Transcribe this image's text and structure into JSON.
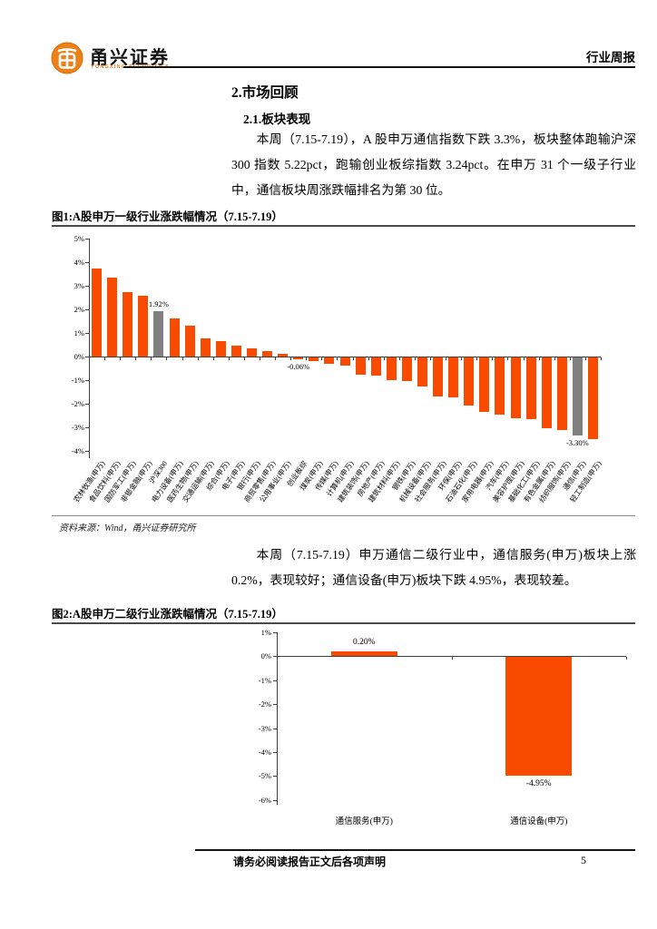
{
  "header": {
    "brand_cn": "甬兴证券",
    "brand_en": "YONGXING SECURITIES",
    "report_type": "行业周报"
  },
  "content": {
    "section_title": "2.市场回顾",
    "subsection_title": "2.1.板块表现",
    "paragraph1": "本周（7.15-7.19），A 股申万通信指数下跌 3.3%，板块整体跑输沪深 300 指数 5.22pct，跑输创业板综指数 3.24pct。在申万 31 个一级子行业中，通信板块周涨跌幅排名为第 30 位。",
    "paragraph2": "本周（7.15-7.19）申万通信二级行业中，通信服务(申万)板块上涨 0.2%，表现较好；通信设备(申万)板块下跌 4.95%，表现较差。"
  },
  "footer": {
    "disclaimer": "请务必阅读报告正文后各项声明",
    "page_number": "5"
  },
  "colors": {
    "bar_orange": "#f94b00",
    "bar_gray": "#808080",
    "brand_orange": "#ee8019"
  },
  "chart_data": [
    {
      "type": "bar",
      "title": "图1:A股申万一级行业涨跌幅情况（7.15-7.19）",
      "source": "资料来源：Wind，甬兴证券研究所",
      "ylim": [
        -4,
        5
      ],
      "grid": false,
      "legend": false,
      "yticks": [
        "5%",
        "4%",
        "3%",
        "2%",
        "1%",
        "0%",
        "-1%",
        "-2%",
        "-3%",
        "-4%"
      ],
      "categories": [
        "农林牧渔(申万)",
        "食品饮料(申万)",
        "国防军工(申万)",
        "非银金融(申万)",
        "沪深300",
        "电力设备(申万)",
        "医药生物(申万)",
        "交通运输(申万)",
        "综合(申万)",
        "电子(申万)",
        "银行(申万)",
        "商贸零售(申万)",
        "公用事业(申万)",
        "创业板综",
        "煤炭(申万)",
        "传媒(申万)",
        "计算机(申万)",
        "建筑装饰(申万)",
        "房地产(申万)",
        "建筑材料(申万)",
        "钢铁(申万)",
        "机械设备(申万)",
        "社会服务(申万)",
        "环保(申万)",
        "石油石化(申万)",
        "家用电器(申万)",
        "汽车(申万)",
        "美容护理(申万)",
        "基础化工(申万)",
        "有色金属(申万)",
        "纺织服饰(申万)",
        "通信(申万)",
        "轻工制造(申万)"
      ],
      "values": [
        3.72,
        3.35,
        2.72,
        2.58,
        1.92,
        1.6,
        1.3,
        0.76,
        0.65,
        0.45,
        0.36,
        0.24,
        0.12,
        -0.06,
        -0.15,
        -0.25,
        -0.35,
        -0.73,
        -0.78,
        -0.96,
        -1.0,
        -1.22,
        -1.65,
        -1.7,
        -2.05,
        -2.31,
        -2.44,
        -2.56,
        -2.63,
        -3.01,
        -3.08,
        -3.3,
        -3.45
      ],
      "highlight_indices": [
        4,
        31
      ],
      "annotations": [
        {
          "index": 4,
          "text": "1.92%"
        },
        {
          "index": 13,
          "text": "-0.06%"
        },
        {
          "index": 31,
          "text": "-3.30%"
        }
      ]
    },
    {
      "type": "bar",
      "title": "图2:A股申万二级行业涨跌幅情况（7.15-7.19）",
      "ylim": [
        -6,
        1
      ],
      "grid": false,
      "legend": false,
      "yticks": [
        "1%",
        "0%",
        "-1%",
        "-2%",
        "-3%",
        "-4%",
        "-5%",
        "-6%"
      ],
      "categories": [
        "通信服务(申万)",
        "通信设备(申万)"
      ],
      "values": [
        0.2,
        -4.95
      ],
      "data_labels": [
        "0.20%",
        "-4.95%"
      ]
    }
  ]
}
